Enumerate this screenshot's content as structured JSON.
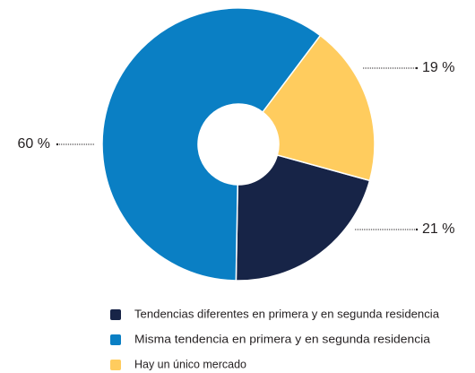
{
  "chart_data": {
    "type": "donut",
    "categories": [
      "Tendencias diferentes en primera y en segunda residencia",
      "Misma tendencia en primera y en segunda residencia",
      "Hay un único mercado"
    ],
    "values": [
      21,
      60,
      19
    ],
    "value_labels": [
      "21 %",
      "60 %",
      "19 %"
    ],
    "colors": [
      "#172447",
      "#0a7fc4",
      "#ffcc5e"
    ]
  }
}
